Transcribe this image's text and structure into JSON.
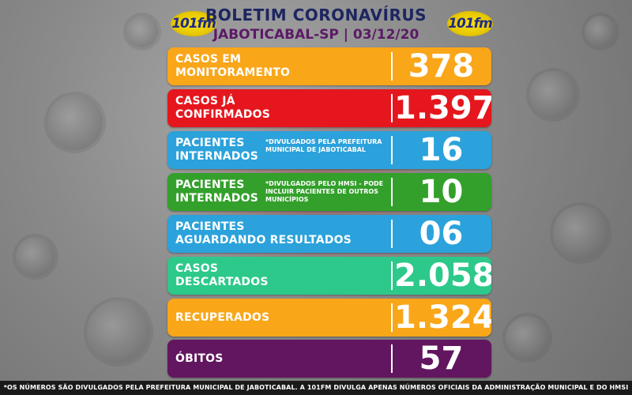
{
  "header": {
    "title": "BOLETIM CORONAVÍRUS",
    "subtitle": "JABOTICABAL-SP | 03/12/20",
    "logo_text": "101fm"
  },
  "rows": [
    {
      "label_line1": "CASOS EM",
      "label_line2": "MONITORAMENTO",
      "note": "",
      "value": "378",
      "color": "#f9a619"
    },
    {
      "label_line1": "CASOS JÁ",
      "label_line2": "CONFIRMADOS",
      "note": "",
      "value": "1.397",
      "color": "#e5161d"
    },
    {
      "label_line1": "PACIENTES",
      "label_line2": "INTERNADOS",
      "note": "*DIVULGADOS PELA PREFEITURA MUNICIPAL DE JABOTICABAL",
      "value": "16",
      "color": "#2ba2db"
    },
    {
      "label_line1": "PACIENTES",
      "label_line2": "INTERNADOS",
      "note": "*DIVULGADOS PELO HMSI - PODE INCLUIR PACIENTES DE OUTROS MUNICÍPIOS",
      "value": "10",
      "color": "#33a02b"
    },
    {
      "label_line1": "PACIENTES",
      "label_line2": "AGUARDANDO RESULTADOS",
      "note": "",
      "value": "06",
      "color": "#2ba2db"
    },
    {
      "label_line1": "CASOS",
      "label_line2": "DESCARTADOS",
      "note": "",
      "value": "2.058",
      "color": "#2dc98a"
    },
    {
      "label_line1": "RECUPERADOS",
      "label_line2": "",
      "note": "",
      "value": "1.324",
      "color": "#f9a619"
    },
    {
      "label_line1": "ÓBITOS",
      "label_line2": "",
      "note": "",
      "value": "57",
      "color": "#62165f"
    }
  ],
  "footer": {
    "text": "*OS NÚMEROS SÃO DIVULGADOS PELA PREFEITURA MUNICIPAL DE JABOTICABAL. A 101FM DIVULGA APENAS NÚMEROS OFICIAIS DA ADMINISTRAÇÃO MUNICIPAL E DO HMSI"
  }
}
